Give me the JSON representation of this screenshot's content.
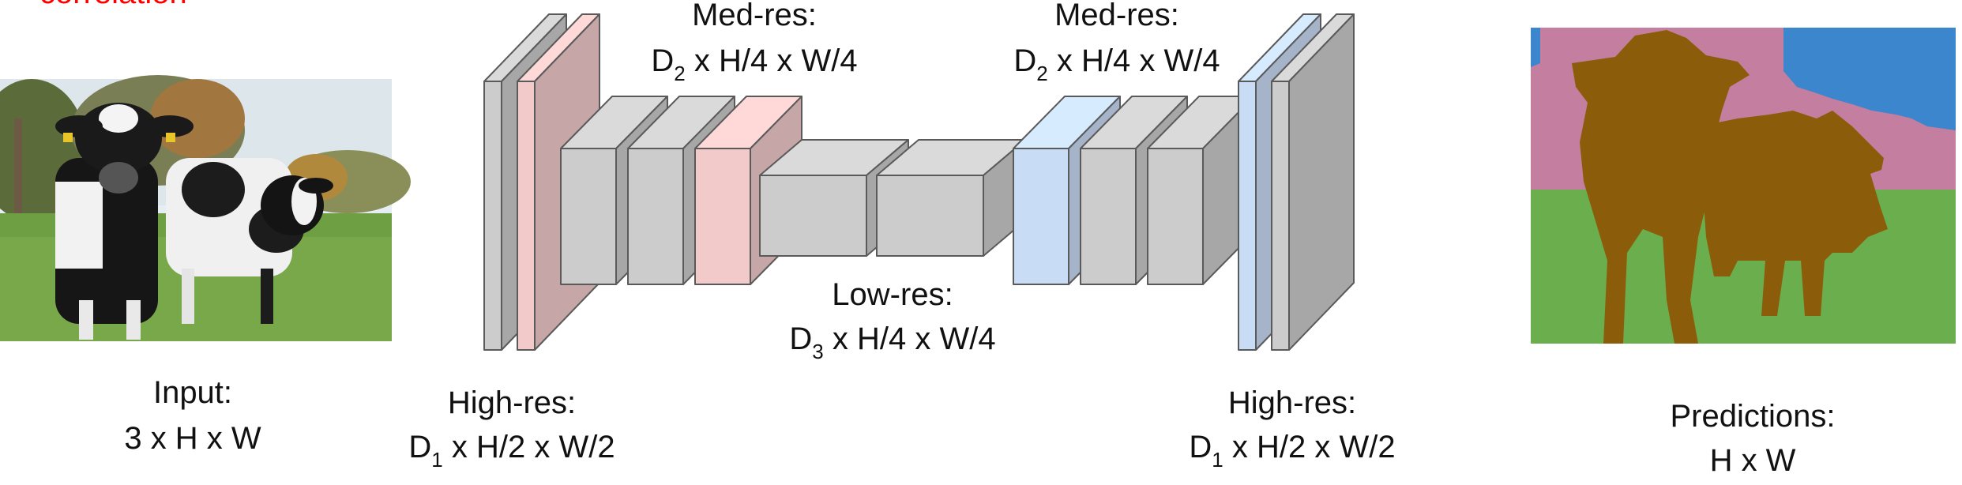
{
  "header": {
    "cropped_text": "correlation"
  },
  "input": {
    "line1": "Input:",
    "line2": "3 x H x W"
  },
  "high_res_left": {
    "line1": "High-res:",
    "dim_prefix": "D",
    "dim_sub": "1",
    "dim_rest": " x H/2 x W/2"
  },
  "med_res_left": {
    "line1": "Med-res:",
    "dim_prefix": "D",
    "dim_sub": "2",
    "dim_rest": " x H/4 x W/4"
  },
  "low_res": {
    "line1": "Low-res:",
    "dim_prefix": "D",
    "dim_sub": "3",
    "dim_rest": " x H/4 x W/4"
  },
  "med_res_right": {
    "line1": "Med-res:",
    "dim_prefix": "D",
    "dim_sub": "2",
    "dim_rest": " x H/4 x W/4"
  },
  "high_res_right": {
    "line1": "High-res:",
    "dim_prefix": "D",
    "dim_sub": "1",
    "dim_rest": " x H/2 x W/2"
  },
  "predictions": {
    "line1": "Predictions:",
    "line2": "H x W"
  },
  "colors": {
    "block_gray": "#cccccc",
    "block_pink": "#f2caca",
    "block_blue": "#c9dcf5",
    "label_red": "#ff0000",
    "seg_pink": "#c47ea0",
    "seg_blue": "#3b86cc",
    "seg_green": "#6aae4e",
    "seg_cow": "#8b5d0a"
  }
}
